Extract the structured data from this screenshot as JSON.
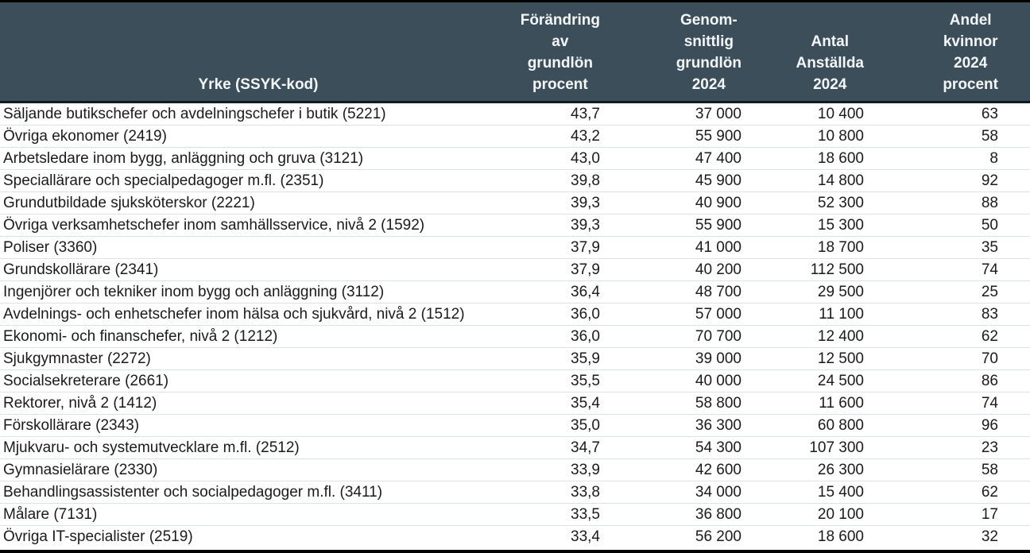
{
  "colors": {
    "header_bg": "#3b4e5a",
    "header_text": "#f4f6f7",
    "header_separator": "#101b22",
    "row_divider": "#d9e3e9",
    "body_text": "#1a1a1a",
    "outer_border": "#000000"
  },
  "table": {
    "header": {
      "col1": [
        "Yrke (SSYK-kod)"
      ],
      "col2": [
        "Förändring",
        "av",
        "grundlön",
        "procent"
      ],
      "col3": [
        "Genom-",
        "snittlig",
        "grundlön",
        "2024"
      ],
      "col4": [
        "Antal",
        "Anställda",
        "2024"
      ],
      "col5": [
        "Andel",
        "kvinnor",
        "2024",
        "procent"
      ]
    },
    "rows": [
      [
        "Säljande butikschefer och avdelningschefer i butik (5221)",
        "43,7",
        "37 000",
        "10 400",
        "63"
      ],
      [
        "Övriga ekonomer (2419)",
        "43,2",
        "55 900",
        "10 800",
        "58"
      ],
      [
        "Arbetsledare inom bygg, anläggning och gruva (3121)",
        "43,0",
        "47 400",
        "18 600",
        "8"
      ],
      [
        "Speciallärare och specialpedagoger m.fl. (2351)",
        "39,8",
        "45 900",
        "14 800",
        "92"
      ],
      [
        "Grundutbildade sjuksköterskor (2221)",
        "39,3",
        "40 900",
        "52 300",
        "88"
      ],
      [
        "Övriga verksamhetschefer inom samhällsservice, nivå 2 (1592)",
        "39,3",
        "55 900",
        "15 300",
        "50"
      ],
      [
        "Poliser (3360)",
        "37,9",
        "41 000",
        "18 700",
        "35"
      ],
      [
        "Grundskollärare (2341)",
        "37,9",
        "40 200",
        "112 500",
        "74"
      ],
      [
        "Ingenjörer och tekniker inom bygg och anläggning (3112)",
        "36,4",
        "48 700",
        "29 500",
        "25"
      ],
      [
        "Avdelnings- och enhetschefer inom hälsa och sjukvård, nivå 2 (1512)",
        "36,0",
        "57 000",
        "11 100",
        "83"
      ],
      [
        "Ekonomi- och finanschefer, nivå 2 (1212)",
        "36,0",
        "70 700",
        "12 400",
        "62"
      ],
      [
        "Sjukgymnaster (2272)",
        "35,9",
        "39 000",
        "12 500",
        "70"
      ],
      [
        "Socialsekreterare (2661)",
        "35,5",
        "40 000",
        "24 500",
        "86"
      ],
      [
        "Rektorer, nivå 2 (1412)",
        "35,4",
        "58 800",
        "11 600",
        "74"
      ],
      [
        "Förskollärare (2343)",
        "35,0",
        "36 300",
        "60 800",
        "96"
      ],
      [
        "Mjukvaru- och systemutvecklare m.fl. (2512)",
        "34,7",
        "54 300",
        "107 300",
        "23"
      ],
      [
        "Gymnasielärare (2330)",
        "33,9",
        "42 600",
        "26 300",
        "58"
      ],
      [
        "Behandlingsassistenter och socialpedagoger m.fl. (3411)",
        "33,8",
        "34 000",
        "15 400",
        "62"
      ],
      [
        "Målare (7131)",
        "33,5",
        "36 800",
        "20 100",
        "17"
      ],
      [
        "Övriga IT-specialister (2519)",
        "33,4",
        "56 200",
        "18 600",
        "32"
      ]
    ]
  },
  "chart_data": {
    "type": "table",
    "title": "",
    "columns": [
      "Yrke (SSYK-kod)",
      "Förändring av grundlön procent",
      "Genomsnittlig grundlön 2024",
      "Antal Anställda 2024",
      "Andel kvinnor 2024 procent"
    ],
    "rows": [
      {
        "yrke": "Säljande butikschefer och avdelningschefer i butik (5221)",
        "forandring_grundlon_procent": 43.7,
        "genomsnittlig_grundlon_2024": 37000,
        "antal_anstallda_2024": 10400,
        "andel_kvinnor_2024_procent": 63
      },
      {
        "yrke": "Övriga ekonomer (2419)",
        "forandring_grundlon_procent": 43.2,
        "genomsnittlig_grundlon_2024": 55900,
        "antal_anstallda_2024": 10800,
        "andel_kvinnor_2024_procent": 58
      },
      {
        "yrke": "Arbetsledare inom bygg, anläggning och gruva (3121)",
        "forandring_grundlon_procent": 43.0,
        "genomsnittlig_grundlon_2024": 47400,
        "antal_anstallda_2024": 18600,
        "andel_kvinnor_2024_procent": 8
      },
      {
        "yrke": "Speciallärare och specialpedagoger m.fl. (2351)",
        "forandring_grundlon_procent": 39.8,
        "genomsnittlig_grundlon_2024": 45900,
        "antal_anstallda_2024": 14800,
        "andel_kvinnor_2024_procent": 92
      },
      {
        "yrke": "Grundutbildade sjuksköterskor (2221)",
        "forandring_grundlon_procent": 39.3,
        "genomsnittlig_grundlon_2024": 40900,
        "antal_anstallda_2024": 52300,
        "andel_kvinnor_2024_procent": 88
      },
      {
        "yrke": "Övriga verksamhetschefer inom samhällsservice, nivå 2 (1592)",
        "forandring_grundlon_procent": 39.3,
        "genomsnittlig_grundlon_2024": 55900,
        "antal_anstallda_2024": 15300,
        "andel_kvinnor_2024_procent": 50
      },
      {
        "yrke": "Poliser (3360)",
        "forandring_grundlon_procent": 37.9,
        "genomsnittlig_grundlon_2024": 41000,
        "antal_anstallda_2024": 18700,
        "andel_kvinnor_2024_procent": 35
      },
      {
        "yrke": "Grundskollärare (2341)",
        "forandring_grundlon_procent": 37.9,
        "genomsnittlig_grundlon_2024": 40200,
        "antal_anstallda_2024": 112500,
        "andel_kvinnor_2024_procent": 74
      },
      {
        "yrke": "Ingenjörer och tekniker inom bygg och anläggning (3112)",
        "forandring_grundlon_procent": 36.4,
        "genomsnittlig_grundlon_2024": 48700,
        "antal_anstallda_2024": 29500,
        "andel_kvinnor_2024_procent": 25
      },
      {
        "yrke": "Avdelnings- och enhetschefer inom hälsa och sjukvård, nivå 2 (1512)",
        "forandring_grundlon_procent": 36.0,
        "genomsnittlig_grundlon_2024": 57000,
        "antal_anstallda_2024": 11100,
        "andel_kvinnor_2024_procent": 83
      },
      {
        "yrke": "Ekonomi- och finanschefer, nivå 2 (1212)",
        "forandring_grundlon_procent": 36.0,
        "genomsnittlig_grundlon_2024": 70700,
        "antal_anstallda_2024": 12400,
        "andel_kvinnor_2024_procent": 62
      },
      {
        "yrke": "Sjukgymnaster (2272)",
        "forandring_grundlon_procent": 35.9,
        "genomsnittlig_grundlon_2024": 39000,
        "antal_anstallda_2024": 12500,
        "andel_kvinnor_2024_procent": 70
      },
      {
        "yrke": "Socialsekreterare (2661)",
        "forandring_grundlon_procent": 35.5,
        "genomsnittlig_grundlon_2024": 40000,
        "antal_anstallda_2024": 24500,
        "andel_kvinnor_2024_procent": 86
      },
      {
        "yrke": "Rektorer, nivå 2 (1412)",
        "forandring_grundlon_procent": 35.4,
        "genomsnittlig_grundlon_2024": 58800,
        "antal_anstallda_2024": 11600,
        "andel_kvinnor_2024_procent": 74
      },
      {
        "yrke": "Förskollärare (2343)",
        "forandring_grundlon_procent": 35.0,
        "genomsnittlig_grundlon_2024": 36300,
        "antal_anstallda_2024": 60800,
        "andel_kvinnor_2024_procent": 96
      },
      {
        "yrke": "Mjukvaru- och systemutvecklare m.fl. (2512)",
        "forandring_grundlon_procent": 34.7,
        "genomsnittlig_grundlon_2024": 54300,
        "antal_anstallda_2024": 107300,
        "andel_kvinnor_2024_procent": 23
      },
      {
        "yrke": "Gymnasielärare (2330)",
        "forandring_grundlon_procent": 33.9,
        "genomsnittlig_grundlon_2024": 42600,
        "antal_anstallda_2024": 26300,
        "andel_kvinnor_2024_procent": 58
      },
      {
        "yrke": "Behandlingsassistenter och socialpedagoger m.fl. (3411)",
        "forandring_grundlon_procent": 33.8,
        "genomsnittlig_grundlon_2024": 34000,
        "antal_anstallda_2024": 15400,
        "andel_kvinnor_2024_procent": 62
      },
      {
        "yrke": "Målare (7131)",
        "forandring_grundlon_procent": 33.5,
        "genomsnittlig_grundlon_2024": 36800,
        "antal_anstallda_2024": 20100,
        "andel_kvinnor_2024_procent": 17
      },
      {
        "yrke": "Övriga IT-specialister (2519)",
        "forandring_grundlon_procent": 33.4,
        "genomsnittlig_grundlon_2024": 56200,
        "antal_anstallda_2024": 18600,
        "andel_kvinnor_2024_procent": 32
      }
    ],
    "layout": {
      "grid": "horizontal row dividers",
      "legend": "none",
      "header_style": "dark slate background, white bold text, bottom-aligned"
    }
  }
}
